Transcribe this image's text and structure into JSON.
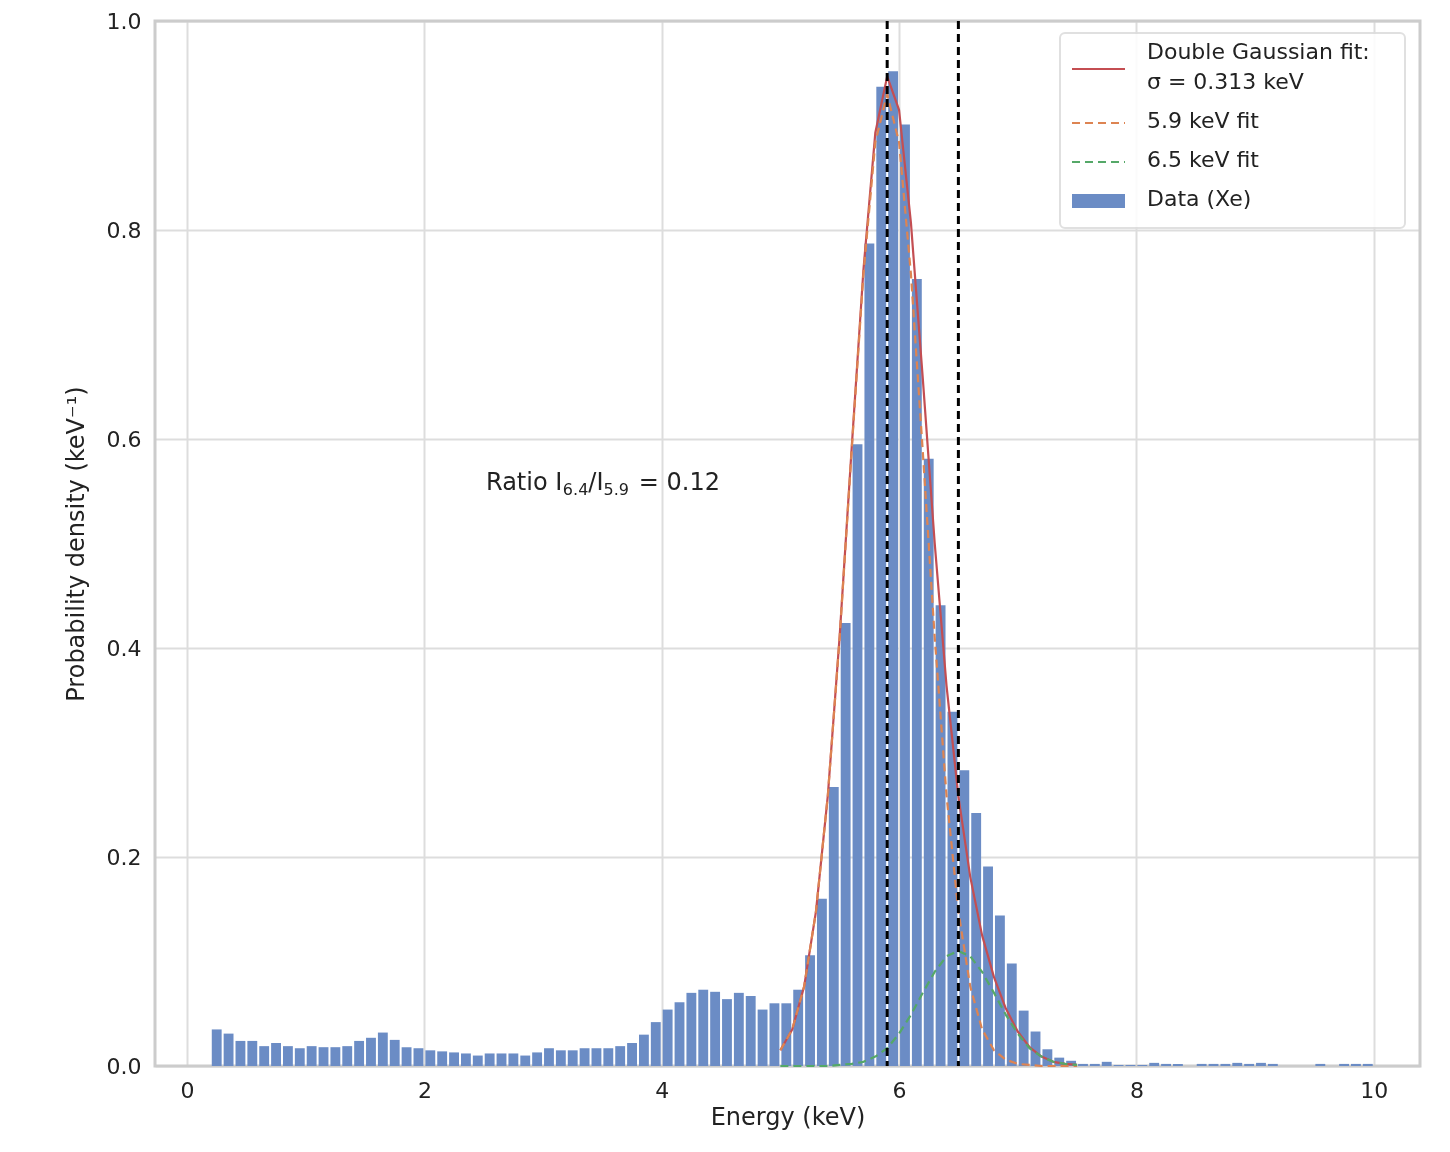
{
  "chart_data": {
    "type": "histogram",
    "xlabel": "Energy (keV)",
    "ylabel": "Probability density (keV⁻¹)",
    "xlim": [
      -0.27,
      10.39
    ],
    "ylim": [
      0,
      1.0
    ],
    "xticks": [
      0,
      2,
      4,
      6,
      8,
      10
    ],
    "yticks": [
      {
        "value": 0,
        "label": "0.0"
      },
      {
        "value": 0.2,
        "label": "0.2"
      },
      {
        "value": 0.4,
        "label": "0.4"
      },
      {
        "value": 0.6,
        "label": "0.6"
      },
      {
        "value": 0.8,
        "label": "0.8"
      },
      {
        "value": 1.0,
        "label": "1.0"
      }
    ],
    "grid": true,
    "legend": "top right",
    "annotations": [
      "Ratio I$_{6.4}$/I$_{5.9}$ = 0.12"
    ],
    "ref_lines": [
      {
        "axis": "x",
        "value": 5.9,
        "color": "#000000",
        "line_style": "dashed"
      },
      {
        "axis": "x",
        "value": 6.5,
        "color": "#000000",
        "line_style": "dashed"
      }
    ],
    "series": [
      {
        "name": "Double Gaussian fit:\nσ = 0.313 keV",
        "type": "line",
        "color": "#c44e52",
        "line_style": "solid",
        "x": [
          5.0,
          5.1,
          5.2,
          5.3,
          5.4,
          5.5,
          5.6,
          5.7,
          5.8,
          5.9,
          6.0,
          6.1,
          6.2,
          6.3,
          6.4,
          6.5,
          6.6,
          6.7,
          6.8,
          6.9,
          7.0,
          7.1,
          7.2,
          7.3,
          7.4,
          7.5
        ],
        "values": [
          0.015,
          0.035,
          0.076,
          0.148,
          0.259,
          0.412,
          0.59,
          0.762,
          0.893,
          0.947,
          0.915,
          0.807,
          0.658,
          0.501,
          0.364,
          0.258,
          0.181,
          0.125,
          0.085,
          0.055,
          0.033,
          0.018,
          0.009,
          0.004,
          0.002,
          0.001
        ]
      },
      {
        "name": "5.9 keV fit",
        "type": "line",
        "color": "#dd8452",
        "line_style": "dashed",
        "x": [
          5.0,
          5.1,
          5.2,
          5.3,
          5.4,
          5.5,
          5.6,
          5.7,
          5.8,
          5.9,
          6.0,
          6.1,
          6.2,
          6.3,
          6.4,
          6.5,
          6.6,
          6.7,
          6.8,
          6.9,
          7.0,
          7.1,
          7.2,
          7.3,
          7.4,
          7.5
        ],
        "values": [
          0.015,
          0.035,
          0.076,
          0.148,
          0.259,
          0.411,
          0.588,
          0.758,
          0.884,
          0.93,
          0.884,
          0.758,
          0.588,
          0.411,
          0.259,
          0.148,
          0.076,
          0.035,
          0.015,
          0.006,
          0.002,
          0.001,
          0,
          0,
          0,
          0
        ]
      },
      {
        "name": "6.5 keV fit",
        "type": "line",
        "color": "#55a868",
        "line_style": "dashed",
        "x": [
          5.0,
          5.1,
          5.2,
          5.3,
          5.4,
          5.5,
          5.6,
          5.7,
          5.8,
          5.9,
          6.0,
          6.1,
          6.2,
          6.3,
          6.4,
          6.5,
          6.6,
          6.7,
          6.8,
          6.9,
          7.0,
          7.1,
          7.2,
          7.3,
          7.4,
          7.5
        ],
        "values": [
          0,
          0,
          0,
          0,
          0,
          0.001,
          0.002,
          0.004,
          0.009,
          0.017,
          0.031,
          0.049,
          0.07,
          0.09,
          0.105,
          0.11,
          0.105,
          0.09,
          0.07,
          0.049,
          0.031,
          0.017,
          0.009,
          0.004,
          0.002,
          0.001
        ]
      },
      {
        "name": "Data (Xe)",
        "type": "histogram",
        "color": "#6b8cc5",
        "bins": [
          0.2,
          0.3,
          0.4,
          0.5,
          0.6,
          0.7,
          0.8,
          0.9,
          1.0,
          1.1,
          1.2,
          1.3,
          1.4,
          1.5,
          1.6,
          1.7,
          1.8,
          1.9,
          2.0,
          2.1,
          2.2,
          2.3,
          2.4,
          2.5,
          2.6,
          2.7,
          2.8,
          2.9,
          3.0,
          3.1,
          3.2,
          3.3,
          3.4,
          3.5,
          3.6,
          3.7,
          3.8,
          3.9,
          4.0,
          4.1,
          4.2,
          4.3,
          4.4,
          4.5,
          4.6,
          4.7,
          4.8,
          4.9,
          5.0,
          5.1,
          5.2,
          5.3,
          5.4,
          5.5,
          5.6,
          5.7,
          5.8,
          5.9,
          6.0,
          6.1,
          6.2,
          6.3,
          6.4,
          6.5,
          6.6,
          6.7,
          6.8,
          6.9,
          7.0,
          7.1,
          7.2,
          7.3,
          7.4,
          7.5,
          7.6,
          7.7,
          7.8,
          7.9,
          8.0,
          8.1,
          8.2,
          8.3,
          8.4,
          8.5,
          8.6,
          8.7,
          8.8,
          8.9,
          9.0,
          9.1,
          9.2,
          9.3,
          9.4,
          9.5,
          9.6,
          9.7,
          9.8,
          9.9,
          10.0
        ],
        "values": [
          0.035,
          0.031,
          0.024,
          0.024,
          0.019,
          0.022,
          0.019,
          0.017,
          0.019,
          0.018,
          0.018,
          0.019,
          0.024,
          0.027,
          0.032,
          0.025,
          0.018,
          0.017,
          0.015,
          0.014,
          0.013,
          0.012,
          0.01,
          0.012,
          0.012,
          0.012,
          0.01,
          0.013,
          0.017,
          0.015,
          0.015,
          0.017,
          0.017,
          0.017,
          0.019,
          0.022,
          0.03,
          0.042,
          0.054,
          0.061,
          0.07,
          0.073,
          0.071,
          0.064,
          0.07,
          0.067,
          0.054,
          0.06,
          0.06,
          0.073,
          0.106,
          0.16,
          0.267,
          0.424,
          0.595,
          0.787,
          0.937,
          0.952,
          0.901,
          0.753,
          0.581,
          0.441,
          0.339,
          0.283,
          0.242,
          0.191,
          0.144,
          0.098,
          0.053,
          0.033,
          0.016,
          0.008,
          0.005,
          0.002,
          0.002,
          0.004,
          0.001,
          0.001,
          0.001,
          0.003,
          0.002,
          0.002,
          0,
          0.002,
          0.002,
          0.002,
          0.003,
          0.002,
          0.003,
          0.002,
          0,
          0,
          0,
          0.002,
          0,
          0.002,
          0.002,
          0.002
        ]
      }
    ]
  }
}
